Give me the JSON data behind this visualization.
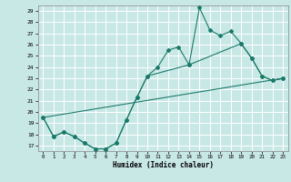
{
  "xlabel": "Humidex (Indice chaleur)",
  "background_color": "#c8e8e6",
  "grid_color": "#ffffff",
  "line_color": "#1a7a6a",
  "xlim_min": -0.5,
  "xlim_max": 23.5,
  "ylim_min": 16.5,
  "ylim_max": 29.5,
  "xticks": [
    0,
    1,
    2,
    3,
    4,
    5,
    6,
    7,
    8,
    9,
    10,
    11,
    12,
    13,
    14,
    15,
    16,
    17,
    18,
    19,
    20,
    21,
    22,
    23
  ],
  "yticks": [
    17,
    18,
    19,
    20,
    21,
    22,
    23,
    24,
    25,
    26,
    27,
    28,
    29
  ],
  "line1_x": [
    0,
    1,
    2,
    3,
    4,
    5,
    6,
    7,
    8,
    9,
    10,
    11,
    12,
    13,
    14,
    15,
    16,
    17,
    18,
    19,
    20,
    21,
    22,
    23
  ],
  "line1_y": [
    19.5,
    17.8,
    18.2,
    17.8,
    17.2,
    16.7,
    16.7,
    17.2,
    19.3,
    21.3,
    23.2,
    24.0,
    25.5,
    25.8,
    24.2,
    29.3,
    27.3,
    26.8,
    27.2,
    26.1,
    24.8,
    23.2,
    22.8,
    23.0
  ],
  "line2_x": [
    0,
    1,
    2,
    3,
    4,
    5,
    6,
    7,
    8,
    9,
    10,
    14,
    19,
    20,
    21,
    22,
    23
  ],
  "line2_y": [
    19.5,
    17.8,
    18.2,
    17.8,
    17.2,
    16.7,
    16.7,
    17.2,
    19.3,
    21.3,
    23.2,
    24.2,
    26.1,
    24.8,
    23.2,
    22.8,
    23.0
  ],
  "line3_x": [
    0,
    23
  ],
  "line3_y": [
    19.5,
    23.0
  ]
}
